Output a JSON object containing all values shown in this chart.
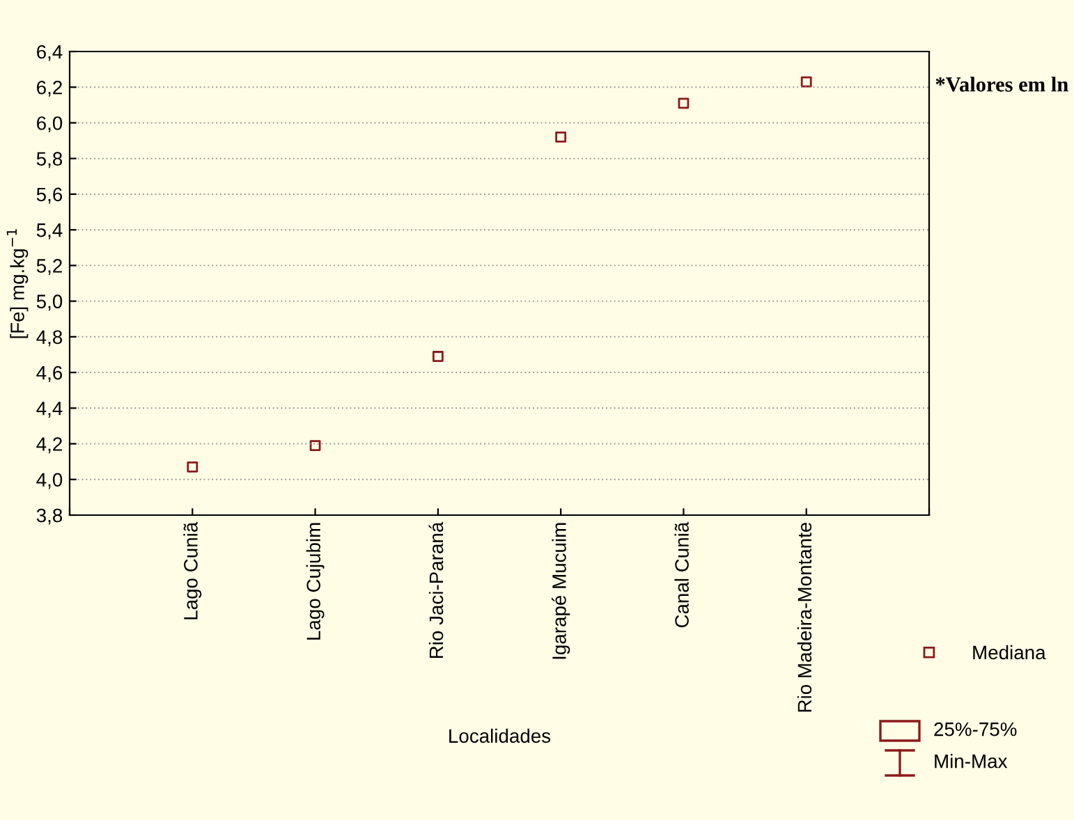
{
  "chart_data": {
    "type": "scatter",
    "xlabel": "Localidades",
    "ylabel": "[Fe] mg.kg$^{−1}$",
    "categories": [
      "Lago Cuniã",
      "Lago Cujubim",
      "Rio Jaci-Paraná",
      "Igarapé Mucuim",
      "Canal Cuniã",
      "Rio Madeira-Montante"
    ],
    "series": [
      {
        "name": "Mediana",
        "color": "#8b1a1a",
        "values": [
          4.07,
          4.19,
          4.69,
          5.92,
          6.11,
          6.23
        ]
      }
    ],
    "ylim": [
      3.8,
      6.4
    ],
    "yticks": [
      {
        "value": 3.8,
        "label": "3,8"
      },
      {
        "value": 4.0,
        "label": "4,0"
      },
      {
        "value": 4.2,
        "label": "4,2"
      },
      {
        "value": 4.4,
        "label": "4,4"
      },
      {
        "value": 4.6,
        "label": "4,6"
      },
      {
        "value": 4.8,
        "label": "4,8"
      },
      {
        "value": 5.0,
        "label": "5,0"
      },
      {
        "value": 5.2,
        "label": "5,2"
      },
      {
        "value": 5.4,
        "label": "5,4"
      },
      {
        "value": 5.6,
        "label": "5,6"
      },
      {
        "value": 5.8,
        "label": "5,8"
      },
      {
        "value": 6.0,
        "label": "6,0"
      },
      {
        "value": 6.2,
        "label": "6,2"
      },
      {
        "value": 6.4,
        "label": "6,4"
      }
    ],
    "grid": "y",
    "legend": "bottom right",
    "marker": "square",
    "annotations": [
      "*Valores em ln",
      "25%-75%",
      "Min-Max"
    ]
  }
}
